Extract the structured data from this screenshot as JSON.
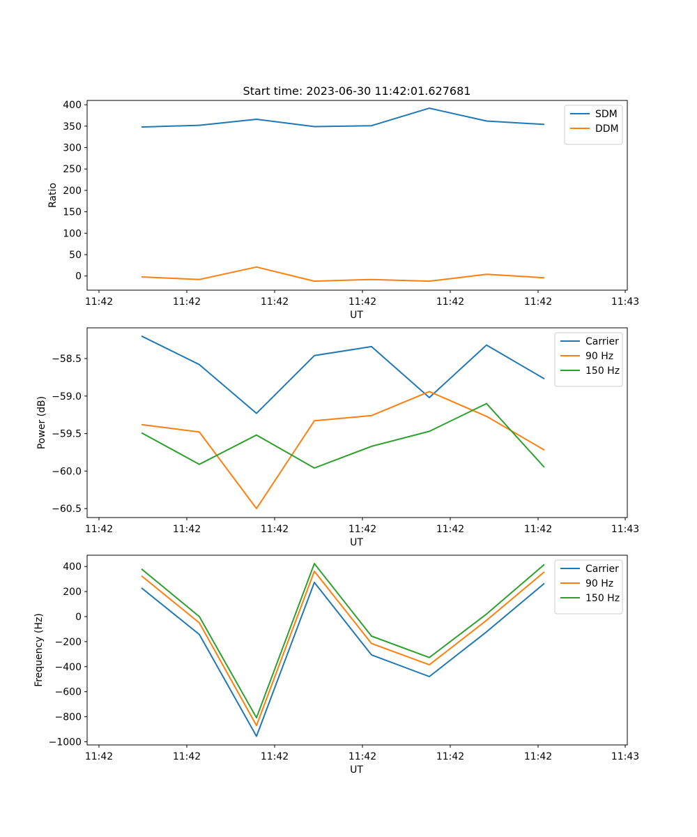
{
  "title": "Start time: 2023-06-30 11:42:01.627681",
  "chart_data": [
    {
      "type": "line",
      "xlabel": "UT",
      "ylabel": "Ratio",
      "x_tick_labels": [
        "11:42",
        "11:42",
        "11:42",
        "11:42",
        "11:42",
        "11:42",
        "11:42",
        "11:43"
      ],
      "yticks": [
        0,
        50,
        100,
        150,
        200,
        250,
        300,
        350,
        400
      ],
      "y_tick_labels": [
        "0",
        "50",
        "100",
        "150",
        "200",
        "250",
        "300",
        "350",
        "400"
      ],
      "ylim": [
        -33,
        410
      ],
      "legend": "top-right",
      "series": [
        {
          "name": "SDM",
          "color": "#1f77b4",
          "values": [
            348,
            352,
            366,
            349,
            351,
            392,
            362,
            354
          ]
        },
        {
          "name": "DDM",
          "color": "#ff7f0e",
          "values": [
            -2,
            -8,
            21,
            -12,
            -8,
            -12,
            4,
            -4
          ]
        }
      ]
    },
    {
      "type": "line",
      "xlabel": "UT",
      "ylabel": "Power (dB)",
      "x_tick_labels": [
        "11:42",
        "11:42",
        "11:42",
        "11:42",
        "11:42",
        "11:42",
        "11:42",
        "11:43"
      ],
      "yticks": [
        -60.5,
        -60.0,
        -59.5,
        -59.0,
        -58.5
      ],
      "y_tick_labels": [
        "−60.5",
        "−60.0",
        "−59.5",
        "−59.0",
        "−58.5"
      ],
      "ylim": [
        -60.62,
        -58.09
      ],
      "legend": "top-right",
      "series": [
        {
          "name": "Carrier",
          "color": "#1f77b4",
          "values": [
            -58.2,
            -58.58,
            -59.23,
            -58.46,
            -58.34,
            -59.02,
            -58.32,
            -58.77
          ]
        },
        {
          "name": "90 Hz",
          "color": "#ff7f0e",
          "values": [
            -59.38,
            -59.48,
            -60.5,
            -59.33,
            -59.26,
            -58.94,
            -59.27,
            -59.72
          ]
        },
        {
          "name": "150 Hz",
          "color": "#2ca02c",
          "values": [
            -59.49,
            -59.91,
            -59.52,
            -59.96,
            -59.67,
            -59.47,
            -59.1,
            -59.95
          ]
        }
      ]
    },
    {
      "type": "line",
      "xlabel": "UT",
      "ylabel": "Frequency (Hz)",
      "x_tick_labels": [
        "11:42",
        "11:42",
        "11:42",
        "11:42",
        "11:42",
        "11:42",
        "11:42",
        "11:43"
      ],
      "yticks": [
        -1000,
        -800,
        -600,
        -400,
        -200,
        0,
        200,
        400
      ],
      "y_tick_labels": [
        "−1000",
        "−800",
        "−600",
        "−400",
        "−200",
        "0",
        "200",
        "400"
      ],
      "ylim": [
        -1025,
        490
      ],
      "legend": "top-right",
      "series": [
        {
          "name": "Carrier",
          "color": "#1f77b4",
          "values": [
            229,
            -143,
            -956,
            273,
            -306,
            -479,
            -122,
            265
          ]
        },
        {
          "name": "90 Hz",
          "color": "#ff7f0e",
          "values": [
            325,
            -50,
            -870,
            362,
            -215,
            -385,
            -30,
            357
          ]
        },
        {
          "name": "150 Hz",
          "color": "#2ca02c",
          "values": [
            380,
            0,
            -808,
            423,
            -156,
            -327,
            20,
            416
          ]
        }
      ]
    }
  ]
}
